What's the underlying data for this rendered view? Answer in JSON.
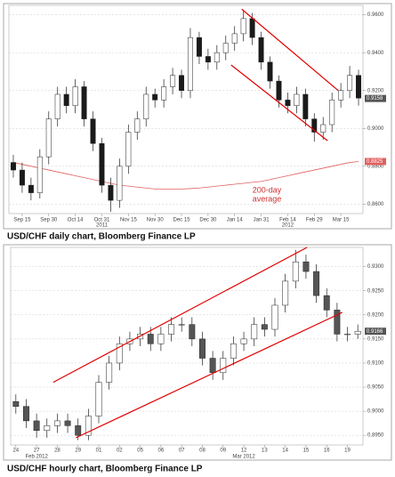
{
  "chart_data": [
    {
      "type": "candlestick",
      "title": "USD/CHF daily chart, Bloomberg Finance LP",
      "categories": [
        null,
        "Sep 15",
        null,
        null,
        "Sep 30",
        null,
        null,
        "Oct 14",
        null,
        null,
        "Oct 31",
        null,
        null,
        "Nov 15",
        null,
        null,
        "Nov 30",
        null,
        null,
        "Dec 15",
        null,
        null,
        "Dec 30",
        null,
        null,
        "Jan 14",
        null,
        null,
        "Jan 31",
        null,
        null,
        "Feb 14",
        null,
        null,
        "Feb 29",
        null,
        null,
        "Mar 15",
        null,
        null
      ],
      "year_categories": [
        null,
        null,
        null,
        null,
        null,
        null,
        null,
        null,
        null,
        null,
        "2011",
        null,
        null,
        null,
        null,
        null,
        null,
        null,
        null,
        null,
        null,
        null,
        null,
        null,
        null,
        null,
        null,
        null,
        null,
        null,
        null,
        "2012",
        null,
        null,
        null,
        null,
        null,
        null,
        null,
        null
      ],
      "open": [
        0.882,
        0.878,
        0.87,
        0.866,
        0.885,
        0.905,
        0.918,
        0.912,
        0.922,
        0.905,
        0.892,
        0.87,
        0.862,
        0.88,
        0.898,
        0.905,
        0.918,
        0.915,
        0.922,
        0.928,
        0.92,
        0.948,
        0.938,
        0.935,
        0.94,
        0.945,
        0.95,
        0.958,
        0.948,
        0.935,
        0.925,
        0.915,
        0.912,
        0.918,
        0.905,
        0.898,
        0.902,
        0.915,
        0.92,
        0.928
      ],
      "high": [
        0.886,
        0.882,
        0.874,
        0.889,
        0.909,
        0.922,
        0.922,
        0.926,
        0.925,
        0.909,
        0.895,
        0.874,
        0.884,
        0.902,
        0.909,
        0.922,
        0.921,
        0.926,
        0.932,
        0.931,
        0.953,
        0.951,
        0.942,
        0.944,
        0.949,
        0.954,
        0.962,
        0.961,
        0.951,
        0.938,
        0.928,
        0.919,
        0.922,
        0.921,
        0.908,
        0.906,
        0.919,
        0.924,
        0.933,
        0.931
      ],
      "low": [
        0.874,
        0.866,
        0.862,
        0.863,
        0.881,
        0.901,
        0.908,
        0.908,
        0.901,
        0.888,
        0.866,
        0.856,
        0.858,
        0.876,
        0.894,
        0.901,
        0.911,
        0.911,
        0.918,
        0.916,
        0.916,
        0.934,
        0.931,
        0.931,
        0.936,
        0.941,
        0.946,
        0.944,
        0.931,
        0.921,
        0.911,
        0.908,
        0.908,
        0.901,
        0.893,
        0.894,
        0.898,
        0.911,
        0.916,
        0.912
      ],
      "close": [
        0.878,
        0.87,
        0.866,
        0.885,
        0.905,
        0.918,
        0.912,
        0.922,
        0.905,
        0.892,
        0.87,
        0.862,
        0.88,
        0.898,
        0.905,
        0.918,
        0.915,
        0.922,
        0.928,
        0.92,
        0.948,
        0.938,
        0.935,
        0.94,
        0.945,
        0.95,
        0.958,
        0.948,
        0.935,
        0.925,
        0.915,
        0.912,
        0.918,
        0.905,
        0.898,
        0.902,
        0.915,
        0.92,
        0.928,
        0.916
      ],
      "up_color": "#ffffff",
      "down_color": "#1a1a1a",
      "moving_average": {
        "color": "#e06060",
        "values": [
          0.882,
          0.881,
          0.88,
          0.879,
          0.878,
          0.877,
          0.876,
          0.875,
          0.874,
          0.873,
          0.872,
          0.871,
          0.87,
          0.8695,
          0.869,
          0.8685,
          0.868,
          0.868,
          0.868,
          0.868,
          0.8682,
          0.8685,
          0.869,
          0.8695,
          0.87,
          0.8705,
          0.871,
          0.8715,
          0.872,
          0.873,
          0.874,
          0.875,
          0.876,
          0.877,
          0.878,
          0.879,
          0.88,
          0.881,
          0.882,
          0.8825
        ]
      },
      "ma_last": 0.8825,
      "last_price": 0.9158,
      "annotation_lines": [
        "200-day",
        "average"
      ],
      "trendlines": [
        {
          "color": "#e00000",
          "start": [
            25.8,
            0.963
          ],
          "end": [
            36.7,
            0.92
          ]
        },
        {
          "color": "#e00000",
          "start": [
            24.6,
            0.9335
          ],
          "end": [
            35.5,
            0.8935
          ]
        }
      ],
      "ylim": [
        0.855,
        0.965
      ],
      "yticks": [
        {
          "value": 0.86,
          "label": "0.8600"
        },
        {
          "value": 0.88,
          "label": "0.8800"
        },
        {
          "value": 0.9,
          "label": "0.9000"
        },
        {
          "value": 0.92,
          "label": "0.9200"
        },
        {
          "value": 0.94,
          "label": "0.9400"
        },
        {
          "value": 0.96,
          "label": "0.9600"
        }
      ],
      "grid": true
    },
    {
      "type": "candlestick",
      "title": "USD/CHF hourly chart, Bloomberg Finance LP",
      "categories": [
        "24",
        null,
        "27",
        null,
        "28",
        null,
        "29",
        null,
        "01",
        null,
        "02",
        null,
        "05",
        null,
        "06",
        null,
        "07",
        null,
        "08",
        null,
        "09",
        null,
        "12",
        null,
        "13",
        null,
        "14",
        null,
        "15",
        null,
        "16",
        null,
        "19",
        null
      ],
      "year_categories": [
        null,
        null,
        "Feb 2012",
        null,
        null,
        null,
        null,
        null,
        null,
        null,
        null,
        null,
        null,
        null,
        null,
        null,
        null,
        null,
        null,
        null,
        null,
        null,
        "Mar 2012",
        null,
        null,
        null,
        null,
        null,
        null,
        null,
        null,
        null,
        null,
        null
      ],
      "open": [
        0.902,
        0.901,
        0.898,
        0.896,
        0.897,
        0.898,
        0.897,
        0.895,
        0.899,
        0.906,
        0.91,
        0.914,
        0.915,
        0.916,
        0.914,
        0.916,
        0.918,
        0.918,
        0.915,
        0.911,
        0.908,
        0.911,
        0.914,
        0.915,
        0.918,
        0.917,
        0.922,
        0.927,
        0.931,
        0.929,
        0.924,
        0.921,
        0.916,
        0.916
      ],
      "high": [
        0.9035,
        0.9025,
        0.8995,
        0.8985,
        0.8995,
        0.8995,
        0.8985,
        0.9005,
        0.9075,
        0.9115,
        0.9155,
        0.9165,
        0.9175,
        0.9175,
        0.9175,
        0.9195,
        0.9195,
        0.9195,
        0.9165,
        0.9125,
        0.9125,
        0.9155,
        0.9165,
        0.9195,
        0.9195,
        0.9235,
        0.9285,
        0.9335,
        0.9325,
        0.9305,
        0.9255,
        0.9225,
        0.9175,
        0.918
      ],
      "low": [
        0.8995,
        0.8965,
        0.8945,
        0.8945,
        0.8955,
        0.8955,
        0.894,
        0.894,
        0.8975,
        0.9045,
        0.9085,
        0.9125,
        0.9135,
        0.9125,
        0.9125,
        0.9145,
        0.9165,
        0.9135,
        0.9095,
        0.9065,
        0.9065,
        0.9095,
        0.9125,
        0.9135,
        0.9155,
        0.9155,
        0.9205,
        0.9255,
        0.9275,
        0.9225,
        0.9195,
        0.9145,
        0.9145,
        0.915
      ],
      "close": [
        0.901,
        0.898,
        0.896,
        0.897,
        0.898,
        0.897,
        0.895,
        0.899,
        0.906,
        0.91,
        0.914,
        0.915,
        0.916,
        0.914,
        0.916,
        0.918,
        0.918,
        0.915,
        0.911,
        0.908,
        0.911,
        0.914,
        0.915,
        0.918,
        0.917,
        0.922,
        0.927,
        0.931,
        0.929,
        0.924,
        0.921,
        0.916,
        0.916,
        0.9166
      ],
      "up_color": "#ffffff",
      "down_color": "#555555",
      "last_price": 0.9166,
      "trendlines": [
        {
          "color": "#e00000",
          "start": [
            3.6,
            0.906
          ],
          "end": [
            28.1,
            0.934
          ]
        },
        {
          "color": "#e00000",
          "start": [
            5.8,
            0.8945
          ],
          "end": [
            31.5,
            0.9205
          ]
        }
      ],
      "ylim": [
        0.893,
        0.934
      ],
      "yticks": [
        {
          "value": 0.895,
          "label": "0.8950"
        },
        {
          "value": 0.9,
          "label": "0.9000"
        },
        {
          "value": 0.905,
          "label": "0.9050"
        },
        {
          "value": 0.91,
          "label": "0.9100"
        },
        {
          "value": 0.915,
          "label": "0.9150"
        },
        {
          "value": 0.92,
          "label": "0.9200"
        },
        {
          "value": 0.925,
          "label": "0.9250"
        },
        {
          "value": 0.93,
          "label": "0.9300"
        }
      ],
      "grid": true
    }
  ]
}
